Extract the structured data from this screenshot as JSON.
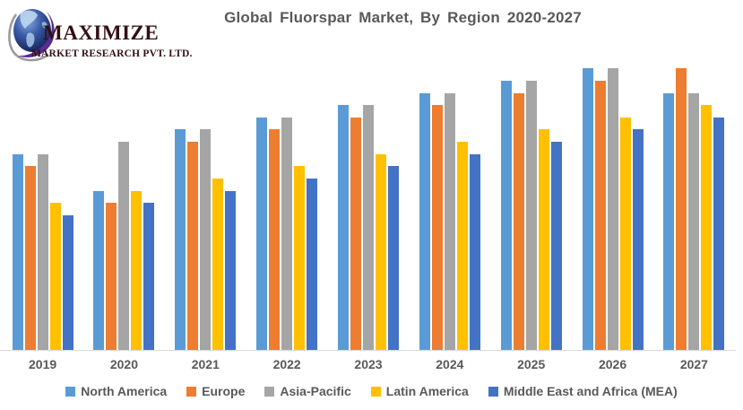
{
  "logo": {
    "line1": "MAXIMIZE",
    "line2": "MARKET RESEARCH PVT. LTD.",
    "icon": "globe-with-swoosh-icon",
    "text_color": "#331011",
    "swoosh_color": "#5a2c8f"
  },
  "title": "Global Fluorspar Market, By Region 2020-2027",
  "chart_data": {
    "type": "bar",
    "title": "Global Fluorspar Market, By Region 2020-2027",
    "categories": [
      "2019",
      "2020",
      "2021",
      "2022",
      "2023",
      "2024",
      "2025",
      "2026",
      "2027"
    ],
    "series": [
      {
        "name": "North America",
        "color": "#5B9BD5",
        "values": [
          64,
          52,
          72,
          76,
          80,
          84,
          88,
          92,
          84
        ]
      },
      {
        "name": "Europe",
        "color": "#ED7D31",
        "values": [
          60,
          48,
          68,
          72,
          76,
          80,
          84,
          88,
          92
        ]
      },
      {
        "name": "Asia-Pacific",
        "color": "#A5A5A5",
        "values": [
          64,
          68,
          72,
          76,
          80,
          84,
          88,
          92,
          84
        ]
      },
      {
        "name": "Latin America",
        "color": "#FFC000",
        "values": [
          48,
          52,
          56,
          60,
          64,
          68,
          72,
          76,
          80
        ]
      },
      {
        "name": "Middle East and Africa (MEA)",
        "color": "#4472C4",
        "values": [
          44,
          48,
          52,
          56,
          60,
          64,
          68,
          72,
          76
        ]
      }
    ],
    "xlabel": "",
    "ylabel": "",
    "ylim": [
      0,
      100
    ],
    "y_axis_visible": false,
    "grid": false,
    "legend_position": "bottom",
    "axis_line_color": "#D9D9D9",
    "label_color": "#595959",
    "note": "No y-axis scale shown in source; values are relative units estimated from bar heights (100 = full plot height)."
  }
}
